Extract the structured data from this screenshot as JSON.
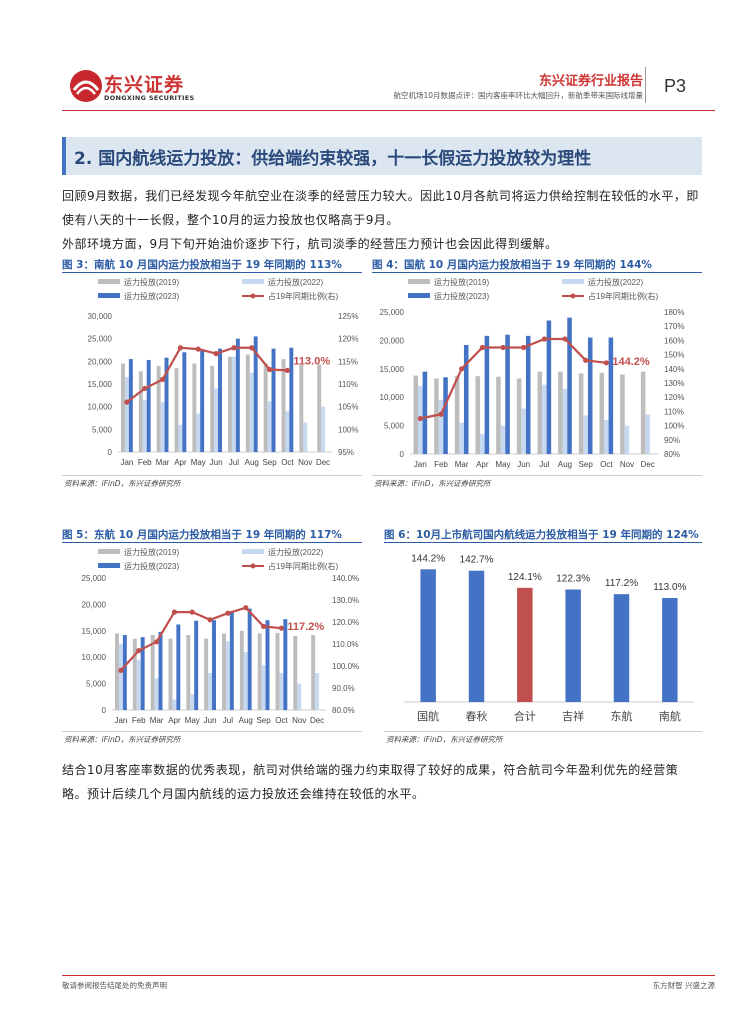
{
  "header": {
    "logo_cn": "东兴证券",
    "logo_en": "DONGXING SECURITIES",
    "report_title": "东兴证券行业报告",
    "report_subtitle": "航空机场10月数据点评：国内客座率环比大幅回升，新航季带来国际线增量",
    "page": "P3",
    "brand_color": "#c8282d"
  },
  "section": {
    "title": "2. 国内航线运力投放：供给端约束较强，十一长假运力投放较为理性"
  },
  "paragraphs": [
    "回顾9月数据，我们已经发现今年航空业在淡季的经营压力较大。因此10月各航司将运力供给控制在较低的水平，即使有八天的十一长假，整个10月的运力投放也仅略高于9月。",
    "外部环境方面，9月下旬开始油价逐步下行，航司淡季的经营压力预计也会因此得到缓解。",
    "结合10月客座率数据的优秀表现，航司对供给端的强力约束取得了较好的成果，符合航司今年盈利优先的经营策略。预计后续几个月国内航线的运力投放还会维持在较低的水平。"
  ],
  "source_text": "资料来源：iFinD，东兴证券研究所",
  "footer": {
    "left": "敬请参阅报告结尾处的免责声明",
    "right": "东方财智 兴盛之源"
  },
  "legend": {
    "s2019": "运力投放(2019)",
    "s2022": "运力投放(2022)",
    "s2023": "运力投放(2023)",
    "ratio": "占19年同期比例(右)"
  },
  "colors": {
    "s2019": "#bdbdbd",
    "s2022": "#c6d9f1",
    "s2023": "#4472c4",
    "ratio": "#c0504d"
  },
  "chart_data": [
    {
      "id": "fig3",
      "type": "bar",
      "title": "图 3：南航 10 月国内运力投放相当于 19 年同期的 113%",
      "categories": [
        "Jan",
        "Feb",
        "Mar",
        "Apr",
        "May",
        "Jun",
        "Jul",
        "Aug",
        "Sep",
        "Oct",
        "Nov",
        "Dec"
      ],
      "series": [
        {
          "name": "运力投放(2019)",
          "values": [
            19500,
            17800,
            19000,
            18500,
            19500,
            19000,
            21000,
            21500,
            19500,
            20500,
            19200,
            19300
          ]
        },
        {
          "name": "运力投放(2022)",
          "values": [
            16500,
            11500,
            11000,
            6000,
            8500,
            14000,
            21000,
            17500,
            11200,
            9000,
            6500,
            10000
          ]
        },
        {
          "name": "运力投放(2023)",
          "values": [
            20500,
            20300,
            20800,
            22000,
            22700,
            22800,
            25000,
            25500,
            22800,
            23000,
            null,
            null
          ]
        },
        {
          "name": "占19年同期比例(右)",
          "axis": "right",
          "values": [
            106,
            109,
            111,
            118,
            117.7,
            116.7,
            118,
            118,
            113.2,
            113.0,
            null,
            null
          ]
        }
      ],
      "ylim": [
        0,
        30000
      ],
      "yticks": [
        0,
        5000,
        10000,
        15000,
        20000,
        25000,
        30000
      ],
      "y2lim": [
        95,
        125
      ],
      "y2ticks": [
        "95%",
        "100%",
        "105%",
        "110%",
        "115%",
        "120%",
        "125%"
      ],
      "annotation": "113.0%"
    },
    {
      "id": "fig4",
      "type": "bar",
      "title": "图 4：国航 10 月国内运力投放相当于 19 年同期的 144%",
      "categories": [
        "Jan",
        "Feb",
        "Mar",
        "Apr",
        "May",
        "Jun",
        "Jul",
        "Aug",
        "Sep",
        "Oct",
        "Nov",
        "Dec"
      ],
      "series": [
        {
          "name": "运力投放(2019)",
          "values": [
            13800,
            13300,
            13800,
            13700,
            13600,
            13300,
            14500,
            14500,
            14200,
            14300,
            14000,
            14500
          ]
        },
        {
          "name": "运力投放(2022)",
          "values": [
            12000,
            9500,
            5500,
            3500,
            5000,
            8000,
            12200,
            11500,
            6800,
            6000,
            5000,
            7000
          ]
        },
        {
          "name": "运力投放(2023)",
          "values": [
            14500,
            13500,
            19200,
            20800,
            21000,
            20800,
            23500,
            24000,
            20500,
            20500,
            null,
            null
          ]
        },
        {
          "name": "占19年同期比例(右)",
          "axis": "right",
          "values": [
            105,
            108,
            140,
            155,
            155,
            155,
            161,
            161,
            146,
            144.2,
            null,
            null
          ]
        }
      ],
      "ylim": [
        0,
        25000
      ],
      "yticks": [
        0,
        5000,
        10000,
        15000,
        20000,
        25000
      ],
      "y2lim": [
        80,
        180
      ],
      "y2ticks": [
        "80%",
        "90%",
        "100%",
        "110%",
        "120%",
        "130%",
        "140%",
        "150%",
        "160%",
        "170%",
        "180%"
      ],
      "annotation": "144.2%"
    },
    {
      "id": "fig5",
      "type": "bar",
      "title": "图 5：东航 10 月国内运力投放相当于 19 年同期的 117%",
      "categories": [
        "Jan",
        "Feb",
        "Mar",
        "Apr",
        "May",
        "Jun",
        "Jul",
        "Aug",
        "Sep",
        "Oct",
        "Nov",
        "Dec"
      ],
      "series": [
        {
          "name": "运力投放(2019)",
          "values": [
            14500,
            13500,
            14200,
            13500,
            14200,
            13500,
            14500,
            15000,
            14500,
            14600,
            14000,
            14200
          ]
        },
        {
          "name": "运力投放(2022)",
          "values": [
            12500,
            9500,
            6000,
            2000,
            3000,
            7000,
            13000,
            11000,
            8500,
            7000,
            5000,
            7000
          ]
        },
        {
          "name": "运力投放(2023)",
          "values": [
            14200,
            13800,
            14800,
            16200,
            16900,
            17000,
            18700,
            19200,
            17000,
            17200,
            null,
            null
          ]
        },
        {
          "name": "占19年同期比例(右)",
          "axis": "right",
          "values": [
            98,
            107,
            111,
            124.5,
            124.5,
            121,
            124,
            126.5,
            118,
            117.2,
            null,
            null
          ]
        }
      ],
      "ylim": [
        0,
        25000
      ],
      "yticks": [
        0,
        5000,
        10000,
        15000,
        20000,
        25000
      ],
      "y2lim": [
        80,
        140
      ],
      "y2ticks": [
        "80.0%",
        "90.0%",
        "100.0%",
        "110.0%",
        "120.0%",
        "130.0%",
        "140.0%"
      ],
      "annotation": "117.2%"
    },
    {
      "id": "fig6",
      "type": "bar",
      "title": "图 6：10月上市航司国内航线运力投放相当于 19 年同期的 124%",
      "categories": [
        "国航",
        "春秋",
        "合计",
        "吉祥",
        "东航",
        "南航"
      ],
      "values": [
        144.2,
        142.7,
        124.1,
        122.3,
        117.2,
        113.0
      ],
      "labels": [
        "144.2%",
        "142.7%",
        "124.1%",
        "122.3%",
        "117.2%",
        "113.0%"
      ],
      "highlight_index": 2,
      "ylim": [
        0,
        150
      ]
    }
  ]
}
